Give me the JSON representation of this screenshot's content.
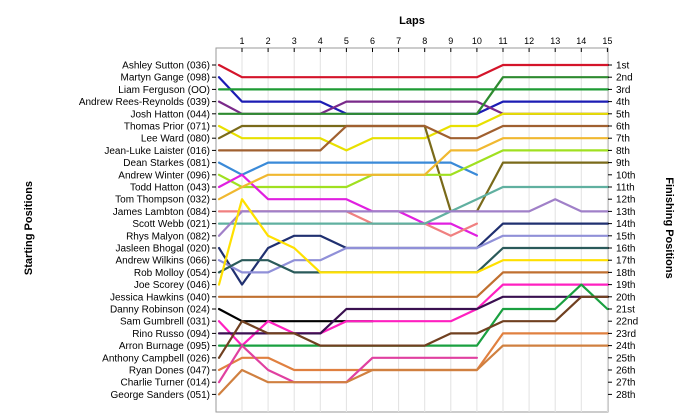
{
  "chart_data": {
    "type": "line",
    "title": "",
    "top_axis_label": "Laps",
    "left_axis_label": "Starting Positions",
    "right_axis_label": "Finishing Positions",
    "laps": [
      1,
      2,
      3,
      4,
      5,
      6,
      7,
      8,
      9,
      10,
      11,
      12,
      13,
      14,
      15
    ],
    "starting_labels": [
      "Ashley Sutton (036)",
      "Martyn Gange (098)",
      "Liam Ferguson (OO)",
      "Andrew Rees-Reynolds (039)",
      "Josh Hatton (044)",
      "Thomas Prior (071)",
      "Lee Ward (080)",
      "Jean-Luke Laister (016)",
      "Dean Starkes (081)",
      "Andrew Winter (096)",
      "Todd Hatton (043)",
      "Tom Thompson (032)",
      "James Lambton (084)",
      "Scott Webb (021)",
      "Rhys Malyon (082)",
      "Jasleen Bhogal (020)",
      "Andrew Wilkins (066)",
      "Rob Molloy (054)",
      "Joe Scorey (046)",
      "Jessica Hawkins (040)",
      "Danny Robinson (024)",
      "Sam Gumbrell (031)",
      "Rino Russo (094)",
      "Arron Burnage (095)",
      "Anthony Campbell (026)",
      "Ryan Dones (047)",
      "Charlie Turner (014)",
      "George Sanders (051)"
    ],
    "finishing_labels": [
      "1st",
      "2nd",
      "3rd",
      "4th",
      "5th",
      "6th",
      "7th",
      "8th",
      "9th",
      "10th",
      "11th",
      "12th",
      "13th",
      "14th",
      "15th",
      "16th",
      "17th",
      "18th",
      "19th",
      "20th",
      "21st",
      "22nd",
      "23rd",
      "24th",
      "25th",
      "26th",
      "27th",
      "28th"
    ],
    "series": [
      {
        "start": 1,
        "positions": [
          2,
          2,
          2,
          2,
          2,
          2,
          2,
          2,
          2,
          2,
          1,
          1,
          1,
          1,
          1
        ],
        "color": "#d4142a"
      },
      {
        "start": 2,
        "positions": [
          4,
          4,
          4,
          4,
          5,
          5,
          5,
          5,
          5,
          5,
          4,
          4,
          4,
          4,
          4
        ],
        "color": "#1c1cb4"
      },
      {
        "start": 3,
        "positions": [
          3,
          3,
          3,
          3,
          3,
          3,
          3,
          3,
          3,
          3,
          3,
          3,
          3,
          3,
          3
        ],
        "color": "#1e9b34"
      },
      {
        "start": 4,
        "positions": [
          5,
          5,
          5,
          5,
          4,
          4,
          4,
          4,
          4,
          4,
          5,
          5,
          5,
          5,
          5
        ],
        "color": "#7a2a8a"
      },
      {
        "start": 5,
        "positions": [
          5,
          5,
          5,
          5,
          5,
          5,
          5,
          5,
          5,
          5,
          2,
          2,
          2,
          2,
          2
        ],
        "color": "#2e8b30"
      },
      {
        "start": 6,
        "positions": [
          7,
          7,
          7,
          7,
          8,
          7,
          7,
          7,
          6,
          6,
          5,
          5,
          5,
          5,
          5
        ],
        "color": "#e8e000"
      },
      {
        "start": 7,
        "positions": [
          6,
          6,
          6,
          6,
          6,
          6,
          6,
          6,
          13,
          13,
          9,
          9,
          9,
          9,
          9
        ],
        "color": "#7a6a1a"
      },
      {
        "start": 8,
        "positions": [
          8,
          8,
          8,
          8,
          6,
          6,
          6,
          6,
          7,
          7,
          6,
          6,
          6,
          6,
          6
        ],
        "color": "#a06030"
      },
      {
        "start": 9,
        "positions": [
          10,
          9,
          9,
          9,
          9,
          9,
          9,
          9,
          9,
          10,
          null,
          null,
          null,
          null,
          null
        ],
        "color": "#3a8ad8"
      },
      {
        "start": 10,
        "positions": [
          11,
          11,
          11,
          11,
          11,
          10,
          10,
          10,
          10,
          9,
          8,
          8,
          8,
          8,
          8
        ],
        "color": "#a0e020"
      },
      {
        "start": 11,
        "positions": [
          10,
          12,
          12,
          12,
          12,
          13,
          13,
          14,
          14,
          15,
          null,
          null,
          null,
          null,
          null
        ],
        "color": "#e020e0"
      },
      {
        "start": 12,
        "positions": [
          11,
          10,
          10,
          10,
          10,
          10,
          10,
          10,
          8,
          8,
          7,
          7,
          7,
          7,
          7
        ],
        "color": "#f0b830"
      },
      {
        "start": 13,
        "positions": [
          13,
          13,
          13,
          13,
          13,
          14,
          14,
          14,
          15,
          14,
          null,
          null,
          null,
          null,
          null
        ],
        "color": "#f08080"
      },
      {
        "start": 14,
        "positions": [
          14,
          14,
          14,
          14,
          14,
          14,
          14,
          14,
          13,
          12,
          11,
          11,
          11,
          11,
          11
        ],
        "color": "#60b0a0"
      },
      {
        "start": 15,
        "positions": [
          13,
          13,
          13,
          13,
          13,
          13,
          13,
          13,
          13,
          13,
          13,
          13,
          12,
          13,
          13
        ],
        "color": "#a080c8"
      },
      {
        "start": 16,
        "positions": [
          19,
          16,
          15,
          15,
          16,
          16,
          16,
          16,
          16,
          16,
          14,
          14,
          14,
          14,
          14
        ],
        "color": "#203070"
      },
      {
        "start": 17,
        "positions": [
          18,
          18,
          17,
          17,
          16,
          16,
          16,
          16,
          16,
          16,
          15,
          15,
          15,
          15,
          15
        ],
        "color": "#9090d8"
      },
      {
        "start": 18,
        "positions": [
          17,
          17,
          18,
          18,
          18,
          18,
          18,
          18,
          18,
          18,
          16,
          16,
          16,
          16,
          16
        ],
        "color": "#2a5a5a"
      },
      {
        "start": 19,
        "positions": [
          12,
          15,
          16,
          18,
          18,
          18,
          18,
          18,
          18,
          18,
          17,
          17,
          17,
          17,
          17
        ],
        "color": "#ffe000"
      },
      {
        "start": 20,
        "positions": [
          20,
          20,
          20,
          20,
          20,
          20,
          20,
          20,
          20,
          20,
          18,
          18,
          18,
          18,
          18
        ],
        "color": "#c07030"
      },
      {
        "start": 21,
        "positions": [
          22,
          22,
          22,
          22,
          22,
          22,
          null,
          null,
          null,
          null,
          null,
          null,
          null,
          null,
          null
        ],
        "color": "#000000"
      },
      {
        "start": 22,
        "positions": [
          24,
          22,
          23,
          23,
          22,
          22,
          22,
          22,
          22,
          21,
          19,
          19,
          19,
          19,
          19
        ],
        "color": "#ff20c0"
      },
      {
        "start": 23,
        "positions": [
          23,
          23,
          23,
          23,
          21,
          21,
          21,
          21,
          21,
          21,
          20,
          20,
          20,
          20,
          20
        ],
        "color": "#3a1050"
      },
      {
        "start": 24,
        "positions": [
          24,
          24,
          24,
          24,
          24,
          24,
          24,
          24,
          24,
          24,
          21,
          21,
          21,
          19,
          21
        ],
        "color": "#1aa040"
      },
      {
        "start": 25,
        "positions": [
          22,
          23,
          23,
          24,
          24,
          24,
          24,
          24,
          23,
          23,
          22,
          22,
          22,
          20,
          20
        ],
        "color": "#704020"
      },
      {
        "start": 26,
        "positions": [
          25,
          25,
          26,
          26,
          26,
          26,
          26,
          26,
          26,
          26,
          23,
          23,
          23,
          23,
          23
        ],
        "color": "#e08040"
      },
      {
        "start": 27,
        "positions": [
          24,
          26,
          27,
          27,
          27,
          25,
          25,
          25,
          25,
          25,
          null,
          null,
          null,
          null,
          null
        ],
        "color": "#e040a0"
      },
      {
        "start": 28,
        "positions": [
          26,
          27,
          27,
          27,
          27,
          26,
          26,
          26,
          26,
          26,
          24,
          24,
          24,
          24,
          24
        ],
        "color": "#d08040"
      }
    ]
  }
}
